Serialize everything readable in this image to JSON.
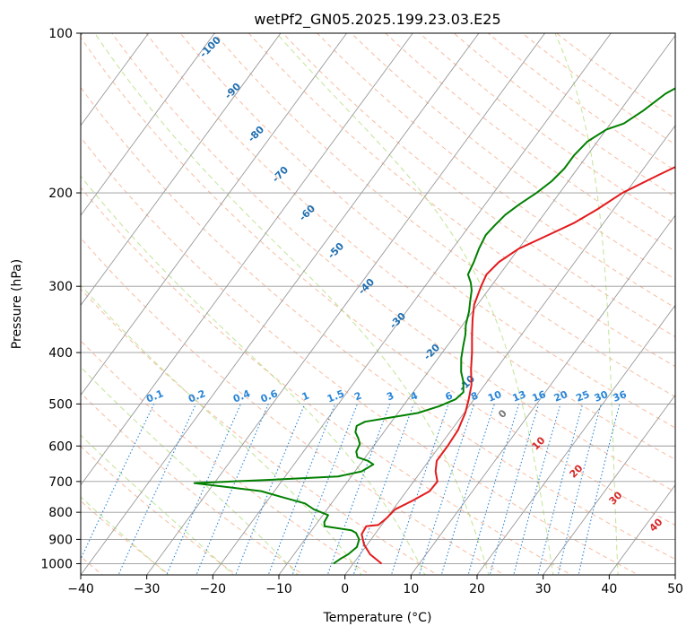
{
  "chart_data": {
    "type": "line",
    "title": "wetPf2_GN05.2025.199.23.03.E25",
    "xlabel": "Temperature (°C)",
    "ylabel": "Pressure (hPa)",
    "xlim": [
      -40,
      50
    ],
    "ylim": [
      1050,
      100
    ],
    "y_scale": "log",
    "grid": true,
    "x_ticks": [
      "−40",
      "−30",
      "−20",
      "−10",
      "0",
      "10",
      "20",
      "30",
      "40",
      "50"
    ],
    "x_tick_values": [
      -40,
      -30,
      -20,
      -10,
      0,
      10,
      20,
      30,
      40,
      50
    ],
    "y_ticks": [
      "100",
      "200",
      "300",
      "400",
      "500",
      "600",
      "700",
      "800",
      "900",
      "1000"
    ],
    "y_tick_values": [
      100,
      200,
      300,
      400,
      500,
      600,
      700,
      800,
      900,
      1000
    ],
    "series": [
      {
        "color": "#e31a1c",
        "points": [
          [
            4.3,
            1000
          ],
          [
            1.5,
            960
          ],
          [
            -0.5,
            920
          ],
          [
            -2.0,
            880
          ],
          [
            -2.2,
            850
          ],
          [
            -0.5,
            845
          ],
          [
            0.0,
            820
          ],
          [
            0.3,
            790
          ],
          [
            2.0,
            760
          ],
          [
            3.5,
            730
          ],
          [
            3.6,
            700
          ],
          [
            2.2,
            670
          ],
          [
            1.2,
            640
          ],
          [
            1.2,
            600
          ],
          [
            1.0,
            560
          ],
          [
            0.2,
            520
          ],
          [
            -0.8,
            490
          ],
          [
            -2.0,
            460
          ],
          [
            -3.8,
            430
          ],
          [
            -5.5,
            400
          ],
          [
            -7.5,
            370
          ],
          [
            -9.2,
            345
          ],
          [
            -10.5,
            325
          ],
          [
            -11.5,
            300
          ],
          [
            -12.0,
            285
          ],
          [
            -11.5,
            270
          ],
          [
            -10.0,
            255
          ],
          [
            -7.0,
            240
          ],
          [
            -4.5,
            228
          ],
          [
            -2.5,
            215
          ],
          [
            -0.5,
            200
          ],
          [
            3.0,
            185
          ],
          [
            7.0,
            170
          ],
          [
            12.0,
            155
          ],
          [
            13.5,
            140
          ],
          [
            14.5,
            130
          ],
          [
            16.0,
            120
          ],
          [
            18.5,
            112
          ],
          [
            21.0,
            105
          ],
          [
            22.0,
            100
          ]
        ]
      },
      {
        "color": "#008000",
        "points": [
          [
            -3.0,
            1000
          ],
          [
            -2.5,
            980
          ],
          [
            -1.8,
            960
          ],
          [
            -1.3,
            930
          ],
          [
            -1.8,
            900
          ],
          [
            -3.0,
            875
          ],
          [
            -4.0,
            865
          ],
          [
            -8.5,
            850
          ],
          [
            -9.0,
            835
          ],
          [
            -9.2,
            810
          ],
          [
            -12.0,
            790
          ],
          [
            -14.0,
            770
          ],
          [
            -18.0,
            750
          ],
          [
            -22.0,
            730
          ],
          [
            -33.0,
            705
          ],
          [
            -22.0,
            695
          ],
          [
            -12.0,
            685
          ],
          [
            -9.0,
            670
          ],
          [
            -8.0,
            650
          ],
          [
            -9.2,
            640
          ],
          [
            -11.2,
            630
          ],
          [
            -12.0,
            615
          ],
          [
            -12.3,
            595
          ],
          [
            -13.2,
            580
          ],
          [
            -14.3,
            565
          ],
          [
            -14.8,
            550
          ],
          [
            -14.0,
            540
          ],
          [
            -10.5,
            530
          ],
          [
            -7.0,
            520
          ],
          [
            -4.5,
            505
          ],
          [
            -2.8,
            490
          ],
          [
            -2.4,
            475
          ],
          [
            -3.5,
            455
          ],
          [
            -5.0,
            435
          ],
          [
            -6.5,
            410
          ],
          [
            -7.5,
            390
          ],
          [
            -8.5,
            370
          ],
          [
            -9.5,
            355
          ],
          [
            -10.0,
            345
          ],
          [
            -10.5,
            335
          ],
          [
            -11.5,
            320
          ],
          [
            -12.5,
            305
          ],
          [
            -13.5,
            295
          ],
          [
            -14.8,
            285
          ],
          [
            -15.3,
            270
          ],
          [
            -16.0,
            255
          ],
          [
            -16.5,
            240
          ],
          [
            -16.2,
            230
          ],
          [
            -15.8,
            220
          ],
          [
            -14.8,
            210
          ],
          [
            -13.5,
            200
          ],
          [
            -12.5,
            190
          ],
          [
            -12.0,
            180
          ],
          [
            -12.0,
            170
          ],
          [
            -11.5,
            160
          ],
          [
            -10.0,
            152
          ],
          [
            -8.0,
            148
          ],
          [
            -6.5,
            140
          ],
          [
            -5.0,
            130
          ],
          [
            -3.5,
            125
          ],
          [
            -2.5,
            120
          ],
          [
            -1.5,
            115
          ],
          [
            -1.0,
            110
          ],
          [
            -0.5,
            106
          ],
          [
            0.0,
            103
          ],
          [
            0.5,
            100
          ]
        ]
      }
    ],
    "dry_adiabats": {
      "color": "#f4a582",
      "theta_c": [
        -40,
        -30,
        -20,
        -10,
        0,
        10,
        20,
        30,
        40,
        50,
        60,
        70,
        80,
        90,
        100,
        110,
        120,
        130,
        140,
        150,
        160,
        170,
        180,
        190,
        200
      ],
      "labels": [
        "-100",
        "-90",
        "-80",
        "-70",
        "-60",
        "-50",
        "-40",
        "-30",
        "-20",
        "-10"
      ],
      "label_color": "#1f6fb0"
    },
    "moist_adiabats": {
      "color": "#a6d96a",
      "theta_w_c": [
        -30,
        -20,
        -10,
        0,
        10,
        20,
        30,
        40,
        50
      ],
      "labels": [
        "0",
        "10",
        "20",
        "30",
        "40"
      ],
      "label_color": "#d62728"
    },
    "mixing_ratios": {
      "color": "#2a86d8",
      "values": [
        0.1,
        0.2,
        0.4,
        0.6,
        1,
        1.5,
        2,
        3,
        4,
        6,
        8,
        10,
        13,
        16,
        20,
        25,
        30,
        36
      ],
      "labels": [
        "0.1",
        "0.2",
        "0.4",
        "0.6",
        "1",
        "1.5",
        "2",
        "3",
        "4",
        "6",
        "8",
        "10",
        "13",
        "16",
        "20",
        "25",
        "30",
        "36"
      ]
    },
    "isotherm_color": "#999999",
    "dry_label_10": "10"
  }
}
